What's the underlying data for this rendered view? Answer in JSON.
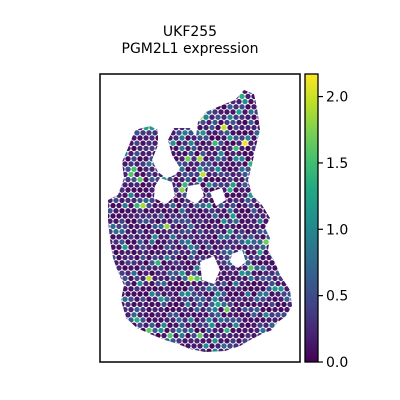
{
  "chart_data": {
    "type": "scatter",
    "kind": "spatial-spot-map",
    "title": "UKF255",
    "subtitle": "PGM2L1 expression",
    "xlabel": "",
    "ylabel": "",
    "grid": false,
    "frame": true,
    "colormap": "viridis",
    "colorbar": {
      "vmin": 0.0,
      "vmax": 2.17,
      "ticks": [
        0.0,
        0.5,
        1.0,
        1.5,
        2.0
      ],
      "tick_labels": [
        "0.0",
        "0.5",
        "1.0",
        "1.5",
        "2.0"
      ]
    },
    "value_distribution": {
      "background_value": 0.1,
      "typical_range": [
        0.0,
        1.0
      ],
      "max_value": 2.17
    },
    "colors": {
      "low": "#440154",
      "mid": "#21918c",
      "high": "#fde725",
      "frame": "#000000"
    }
  }
}
